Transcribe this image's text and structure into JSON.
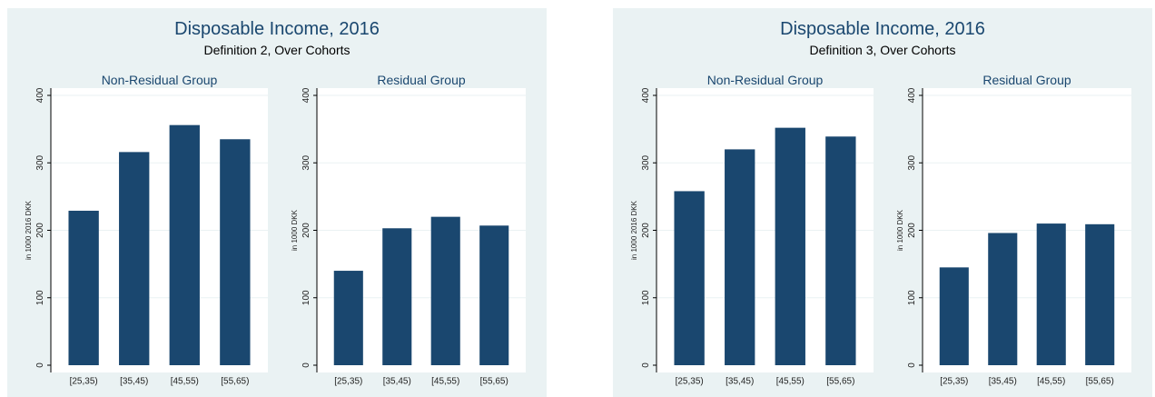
{
  "colors": {
    "background": "#eaf2f3",
    "plot": "#ffffff",
    "bar": "#1a476f",
    "grid": "#eaf2f3",
    "title": "#1a476f"
  },
  "chart_data": [
    {
      "type": "bar",
      "title": "Disposable Income, 2016",
      "subtitle": "Definition 2, Over Cohorts",
      "panels": [
        {
          "title": "Non-Residual Group",
          "ylabel": "in 1000 2016 DKK",
          "categories": [
            "[25,35)",
            "[35,45)",
            "[45,55)",
            "[55,65)"
          ],
          "values": [
            229,
            316,
            356,
            335
          ],
          "yticks": [
            "0",
            "100",
            "200",
            "300",
            "400"
          ],
          "ylim": [
            0,
            400
          ]
        },
        {
          "title": "Residual Group",
          "ylabel": "in 1000 DKK",
          "categories": [
            "[25,35)",
            "[35,45)",
            "[45,55)",
            "[55,65)"
          ],
          "values": [
            140,
            203,
            220,
            207
          ],
          "yticks": [
            "0",
            "100",
            "200",
            "300",
            "400"
          ],
          "ylim": [
            0,
            400
          ]
        }
      ]
    },
    {
      "type": "bar",
      "title": "Disposable Income, 2016",
      "subtitle": "Definition 3, Over Cohorts",
      "panels": [
        {
          "title": "Non-Residual Group",
          "ylabel": "in 1000 2016 DKK",
          "categories": [
            "[25,35)",
            "[35,45)",
            "[45,55)",
            "[55,65)"
          ],
          "values": [
            258,
            320,
            352,
            339
          ],
          "yticks": [
            "0",
            "100",
            "200",
            "300",
            "400"
          ],
          "ylim": [
            0,
            400
          ]
        },
        {
          "title": "Residual Group",
          "ylabel": "in 1000 DKK",
          "categories": [
            "[25,35)",
            "[35,45)",
            "[45,55)",
            "[55,65)"
          ],
          "values": [
            145,
            196,
            210,
            209
          ],
          "yticks": [
            "0",
            "100",
            "200",
            "300",
            "400"
          ],
          "ylim": [
            0,
            400
          ]
        }
      ]
    }
  ]
}
